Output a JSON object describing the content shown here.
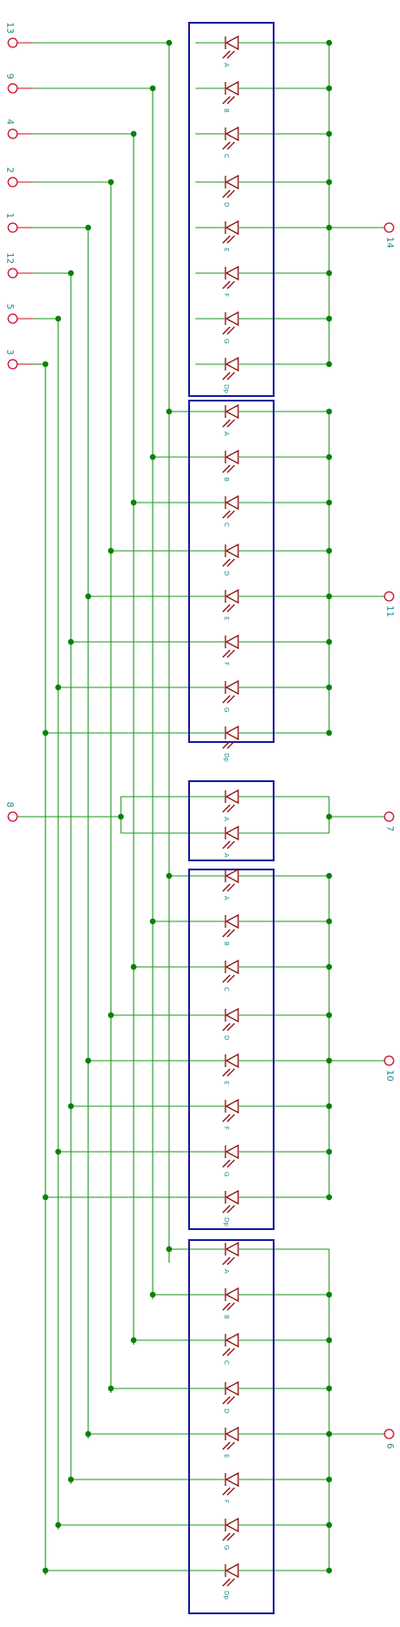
{
  "left_pins": [
    {
      "label": "13",
      "segment": "A"
    },
    {
      "label": "9",
      "segment": "B"
    },
    {
      "label": "4",
      "segment": "C"
    },
    {
      "label": "2",
      "segment": "D"
    },
    {
      "label": "1",
      "segment": "E"
    },
    {
      "label": "12",
      "segment": "F"
    },
    {
      "label": "5",
      "segment": "G"
    },
    {
      "label": "3",
      "segment": "Dp"
    }
  ],
  "colon_pin": {
    "label": "8"
  },
  "digits": [
    {
      "segments": [
        "A",
        "B",
        "C",
        "D",
        "E",
        "F",
        "G",
        "Dp"
      ],
      "common_pin": "14"
    },
    {
      "segments": [
        "A",
        "B",
        "C",
        "D",
        "E",
        "F",
        "G",
        "Dp"
      ],
      "common_pin": "11"
    },
    {
      "segments": [
        "A",
        "A"
      ],
      "common_pin": "7",
      "colon": true
    },
    {
      "segments": [
        "A",
        "B",
        "C",
        "D",
        "E",
        "F",
        "G",
        "Dp"
      ],
      "common_pin": "10"
    },
    {
      "segments": [
        "A",
        "B",
        "C",
        "D",
        "E",
        "F",
        "G",
        "Dp"
      ],
      "common_pin": "6"
    }
  ],
  "colors": {
    "wire": "#1f9a1f",
    "junction": "#0c800c",
    "pin": "#c8102e",
    "label": "#1f8a8a",
    "box": "#1c1ca0",
    "diode": "#8a1010"
  }
}
